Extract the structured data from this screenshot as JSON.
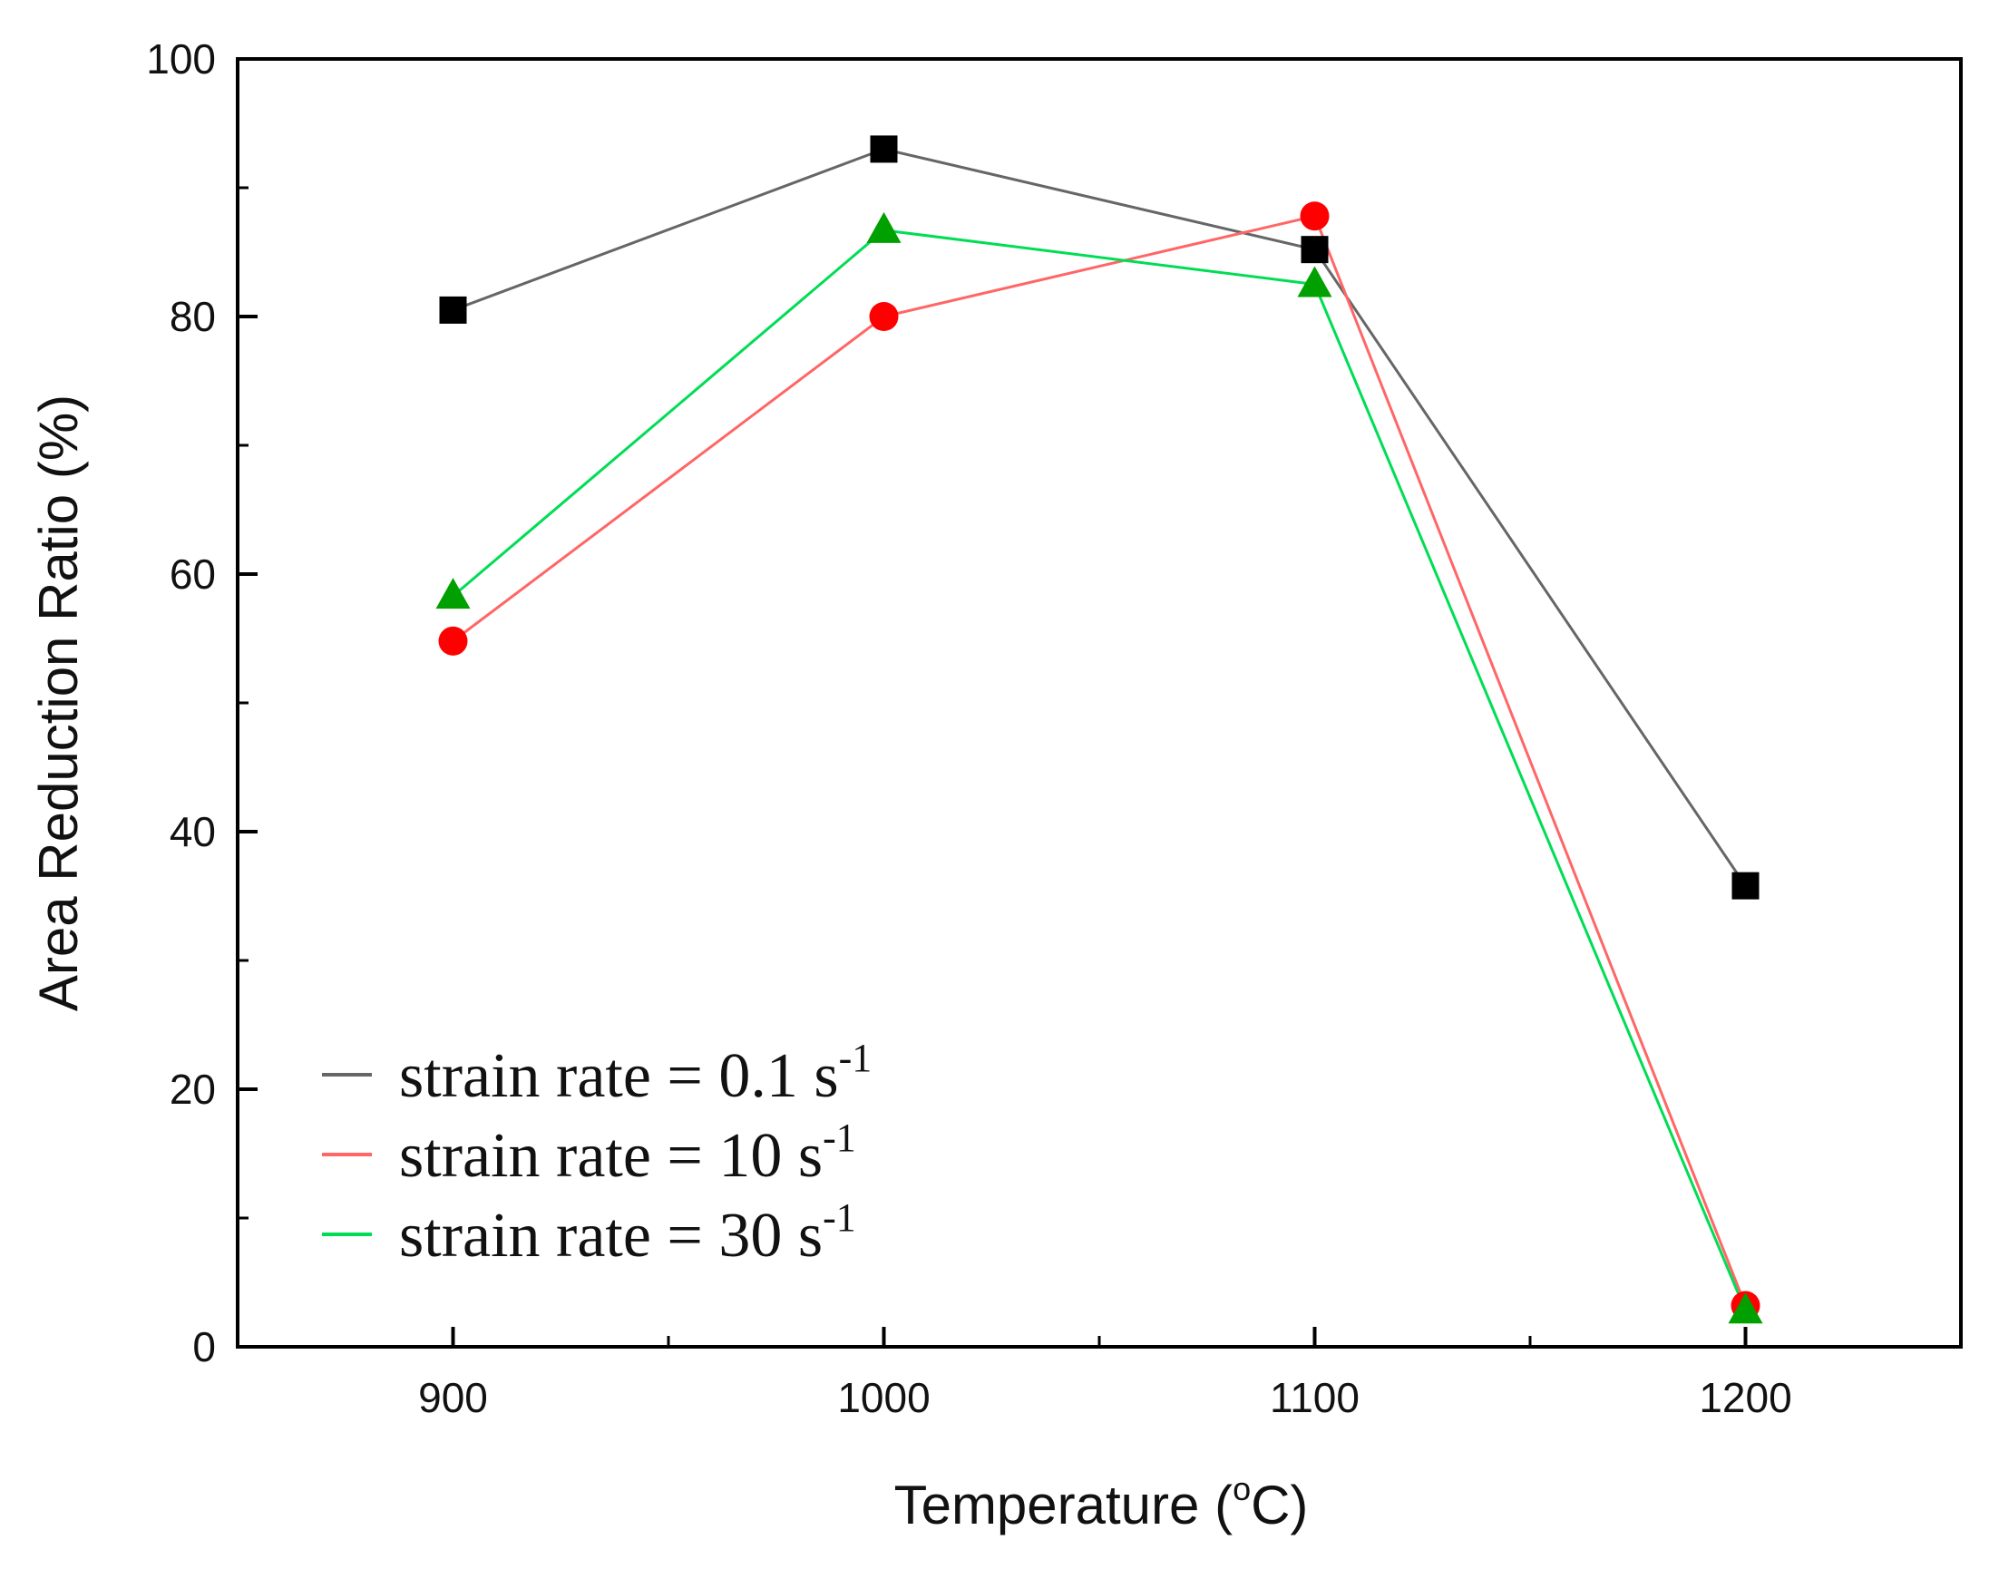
{
  "chart_data": {
    "type": "line",
    "xlabel": {
      "main": "Temperature (",
      "superscript": "o",
      "suffix": "C)"
    },
    "ylabel": "Area Reduction Ratio (%)",
    "x": [
      900,
      1000,
      1100,
      1200
    ],
    "xlim": [
      850,
      1250
    ],
    "ylim": [
      0,
      100
    ],
    "xticks": [
      "900",
      "1000",
      "1100",
      "1200"
    ],
    "yticks": [
      "0",
      "20",
      "40",
      "60",
      "80",
      "100"
    ],
    "grid": false,
    "legend_position": "bottom-left",
    "series": [
      {
        "name": "strain rate = 0.1 s-1",
        "legend_base": "strain rate = 0.1 s",
        "legend_sup": "-1",
        "color": "#000000",
        "line_color": "#666666",
        "marker": "square",
        "values": [
          80.5,
          93,
          85.2,
          35.8
        ]
      },
      {
        "name": "strain rate = 10 s-1",
        "legend_base": "strain rate = 10 s",
        "legend_sup": "-1",
        "color": "#ff0000",
        "line_color": "#ff6666",
        "marker": "circle",
        "values": [
          54.8,
          80,
          87.8,
          3.2
        ]
      },
      {
        "name": "strain rate = 30 s-1",
        "legend_base": "strain rate = 30 s",
        "legend_sup": "-1",
        "color": "#00a000",
        "line_color": "#00dd55",
        "marker": "triangle",
        "values": [
          58.3,
          86.7,
          82.5,
          2.8
        ]
      }
    ]
  }
}
